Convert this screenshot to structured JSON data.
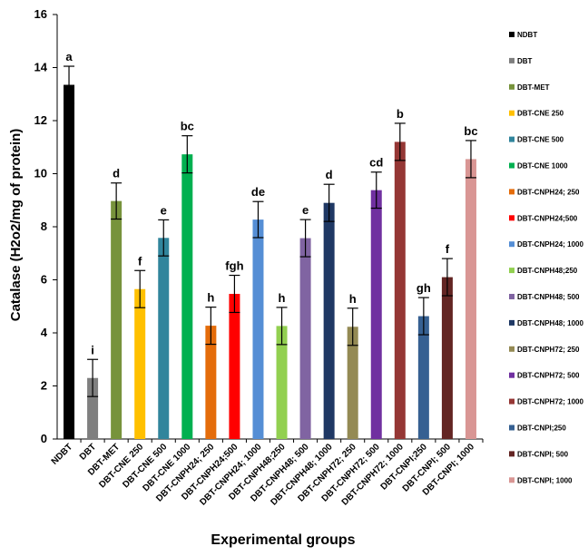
{
  "chart_data": {
    "type": "bar",
    "xlabel": "Experimental groups",
    "ylabel": "Catalase (H2o2/mg of protein)",
    "ylim": [
      0,
      16
    ],
    "yticks": [
      0,
      2,
      4,
      6,
      8,
      10,
      12,
      14,
      16
    ],
    "grid": false,
    "legend_position": "right",
    "categories": [
      "NDBT",
      "DBT",
      "DBT-MET",
      "DBT-CNE 250",
      "DBT-CNE 500",
      "DBT-CNE 1000",
      "DBT-CNPH24; 250",
      "DBT-CNPH24;500",
      "DBT-CNPH24; 1000",
      "DBT-CNPH48;250",
      "DBT-CNPH48; 500",
      "DBT-CNPH48; 1000",
      "DBT-CNPH72; 250",
      "DBT-CNPH72; 500",
      "DBT-CNPH72; 1000",
      "DBT-CNPI;250",
      "DBT-CNPI; 500",
      "DBT-CNPI; 1000"
    ],
    "legend": [
      "NDBT",
      "DBT",
      "DBT-MET",
      "DBT-CNE 250",
      "DBT-CNE 500",
      "DBT-CNE 1000",
      "DBT-CNPH24; 250",
      "DBT-CNPH24;500",
      "DBT-CNPH24; 1000",
      "DBT-CNPH48;250",
      "DBT-CNPH48; 500",
      "DBT-CNPH48; 1000",
      "DBT-CNPH72; 250",
      "DBT-CNPH72; 500",
      "DBT-CNPH72; 1000",
      "DBT-CNPI;250",
      "DBT-CNPI; 500",
      "DBT-CNPI; 1000"
    ],
    "values": [
      13.35,
      2.3,
      8.97,
      5.65,
      7.58,
      10.73,
      4.27,
      5.47,
      8.27,
      4.26,
      7.57,
      8.9,
      4.23,
      9.38,
      11.2,
      4.63,
      6.1,
      10.55
    ],
    "errors": [
      0.7,
      0.7,
      0.68,
      0.7,
      0.68,
      0.7,
      0.7,
      0.7,
      0.68,
      0.7,
      0.7,
      0.7,
      0.7,
      0.68,
      0.7,
      0.7,
      0.7,
      0.7
    ],
    "significance": [
      "a",
      "i",
      "d",
      "f",
      "e",
      "bc",
      "h",
      "fgh",
      "de",
      "h",
      "e",
      "d",
      "h",
      "cd",
      "b",
      "gh",
      "f",
      "bc"
    ],
    "colors": [
      "#000000",
      "#7f7f7f",
      "#77933c",
      "#ffc000",
      "#31859c",
      "#00b050",
      "#e46c0a",
      "#ff0000",
      "#558ed5",
      "#92d050",
      "#8064a2",
      "#1f3864",
      "#948a54",
      "#7030a0",
      "#953735",
      "#366092",
      "#632523",
      "#d99694"
    ]
  }
}
